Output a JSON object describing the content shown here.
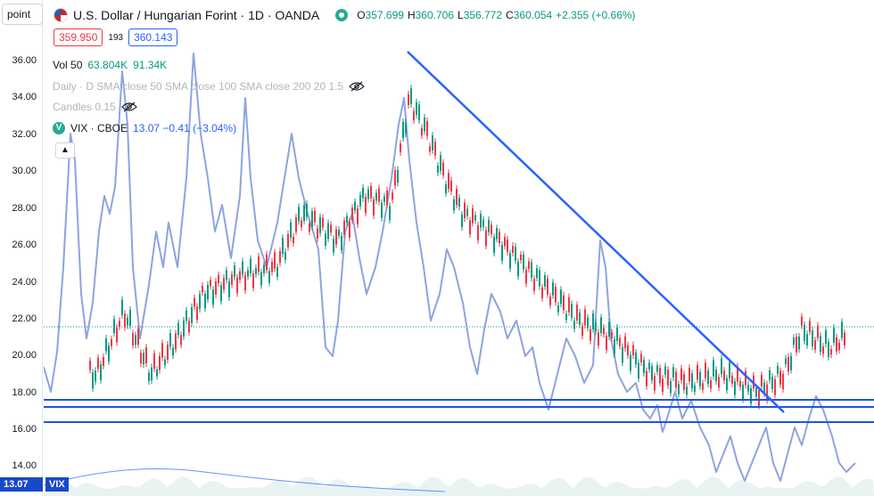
{
  "toolbar": {
    "mode_label": "point"
  },
  "header": {
    "title": "U.S. Dollar / Hungarian Forint · 1D · OANDA",
    "ohlc": [
      {
        "k": "O",
        "v": "357.699"
      },
      {
        "k": "H",
        "v": "360.706"
      },
      {
        "k": "L",
        "v": "356.772"
      },
      {
        "k": "C",
        "v": "360.054"
      },
      {
        "k": "",
        "v": "+2.355 (+0.66%)"
      }
    ],
    "bid": "359.950",
    "spread": "193",
    "ask": "360.143"
  },
  "legend": {
    "volume_label": "Vol 50",
    "volume_v1": "63.804K",
    "volume_v2": "91.34K",
    "sma_label": "Daily · D SMA close 50 SMA close 100 SMA close 200 20 1.5",
    "candles_label": "Candles 0.15",
    "vix_label": "VIX · CBOE",
    "vix_icon": "V",
    "vix_values": "13.07  −0.41 (−3.04%)"
  },
  "axis": {
    "ticks": [
      "36.00",
      "34.00",
      "32.00",
      "30.00",
      "28.00",
      "26.00",
      "24.00",
      "22.00",
      "20.00",
      "18.00",
      "16.00",
      "14.00"
    ],
    "last_value": "13.07",
    "vix_badge": "VIX"
  },
  "colors": {
    "up": "#089981",
    "down": "#f23645",
    "vix_line": "#8fa3e0",
    "trendline": "#2962ff",
    "hline": "#1e53e5",
    "badge": "#1848cc"
  },
  "icons": [
    "flag-icon",
    "market-status-icon",
    "eye-off-icon",
    "chevron-up-icon"
  ]
}
